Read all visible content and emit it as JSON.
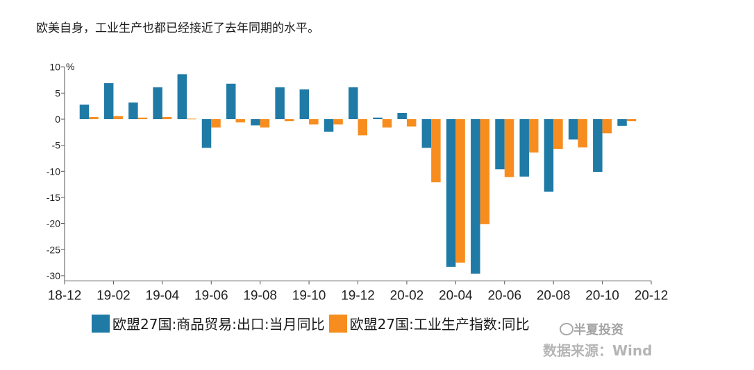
{
  "intro_text": "欧美自身，工业生产也都已经接近了去年同期的水平。",
  "chart_data": {
    "type": "bar",
    "unit_label": "%",
    "ylim": [
      -31,
      10
    ],
    "y_ticks": [
      10,
      5,
      0,
      -5,
      -10,
      -15,
      -20,
      -25,
      -30
    ],
    "x_tick_labels": [
      "18-12",
      "19-02",
      "19-04",
      "19-06",
      "19-08",
      "19-10",
      "19-12",
      "20-02",
      "20-04",
      "20-06",
      "20-08",
      "20-10",
      "20-12"
    ],
    "categories": [
      "19-01",
      "19-02",
      "19-03",
      "19-04",
      "19-05",
      "19-06",
      "19-07",
      "19-08",
      "19-09",
      "19-10",
      "19-11",
      "19-12",
      "20-01",
      "20-02",
      "20-03",
      "20-04",
      "20-05",
      "20-06",
      "20-07",
      "20-08",
      "20-09",
      "20-10",
      "20-11"
    ],
    "series": [
      {
        "name": "欧盟27国:商品贸易:出口:当月同比",
        "color": "#1f7aa6",
        "values": [
          2.8,
          6.9,
          3.2,
          6.1,
          8.6,
          -5.5,
          6.8,
          -1.2,
          6.1,
          5.7,
          -2.4,
          6.1,
          0.3,
          1.2,
          -5.5,
          -28.3,
          -29.6,
          -9.6,
          -11.0,
          -13.9,
          -3.9,
          -10.1,
          -1.3
        ]
      },
      {
        "name": "欧盟27国:工业生产指数:同比",
        "color": "#f78d1e",
        "values": [
          0.4,
          0.6,
          0.3,
          0.4,
          0.1,
          -1.6,
          -0.6,
          -1.6,
          -0.4,
          -1.0,
          -1.0,
          -3.1,
          -1.6,
          -1.4,
          -12.1,
          -27.5,
          -20.1,
          -11.1,
          -6.4,
          -5.7,
          -5.4,
          -2.7,
          -0.4
        ]
      }
    ]
  },
  "legend": {
    "item1_label": "欧盟27国:商品贸易:出口:当月同比",
    "item2_label": "欧盟27国:工业生产指数:同比"
  },
  "watermark_text": "半夏投资",
  "source_text": "数据来源：Wind"
}
